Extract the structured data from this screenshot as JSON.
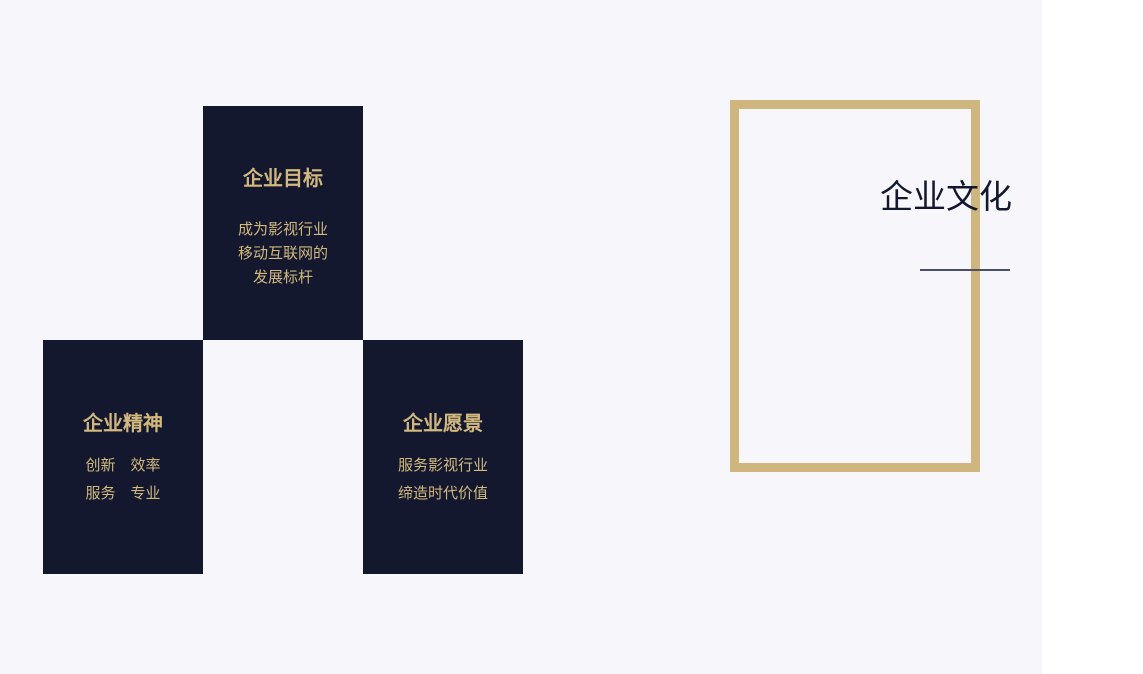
{
  "colors": {
    "page_bg": "#f7f6fb",
    "navy": "#13182e",
    "gold": "#cfb57e"
  },
  "culture": {
    "title": "企业文化"
  },
  "blocks": {
    "goal": {
      "title": "企业目标",
      "lines": [
        "成为影视行业",
        "移动互联网的",
        "发展标杆"
      ]
    },
    "spirit": {
      "title": "企业精神",
      "lines": [
        "创新　效率",
        "服务　专业"
      ]
    },
    "vision": {
      "title": "企业愿景",
      "lines": [
        "服务影视行业",
        "缔造时代价值"
      ]
    }
  }
}
